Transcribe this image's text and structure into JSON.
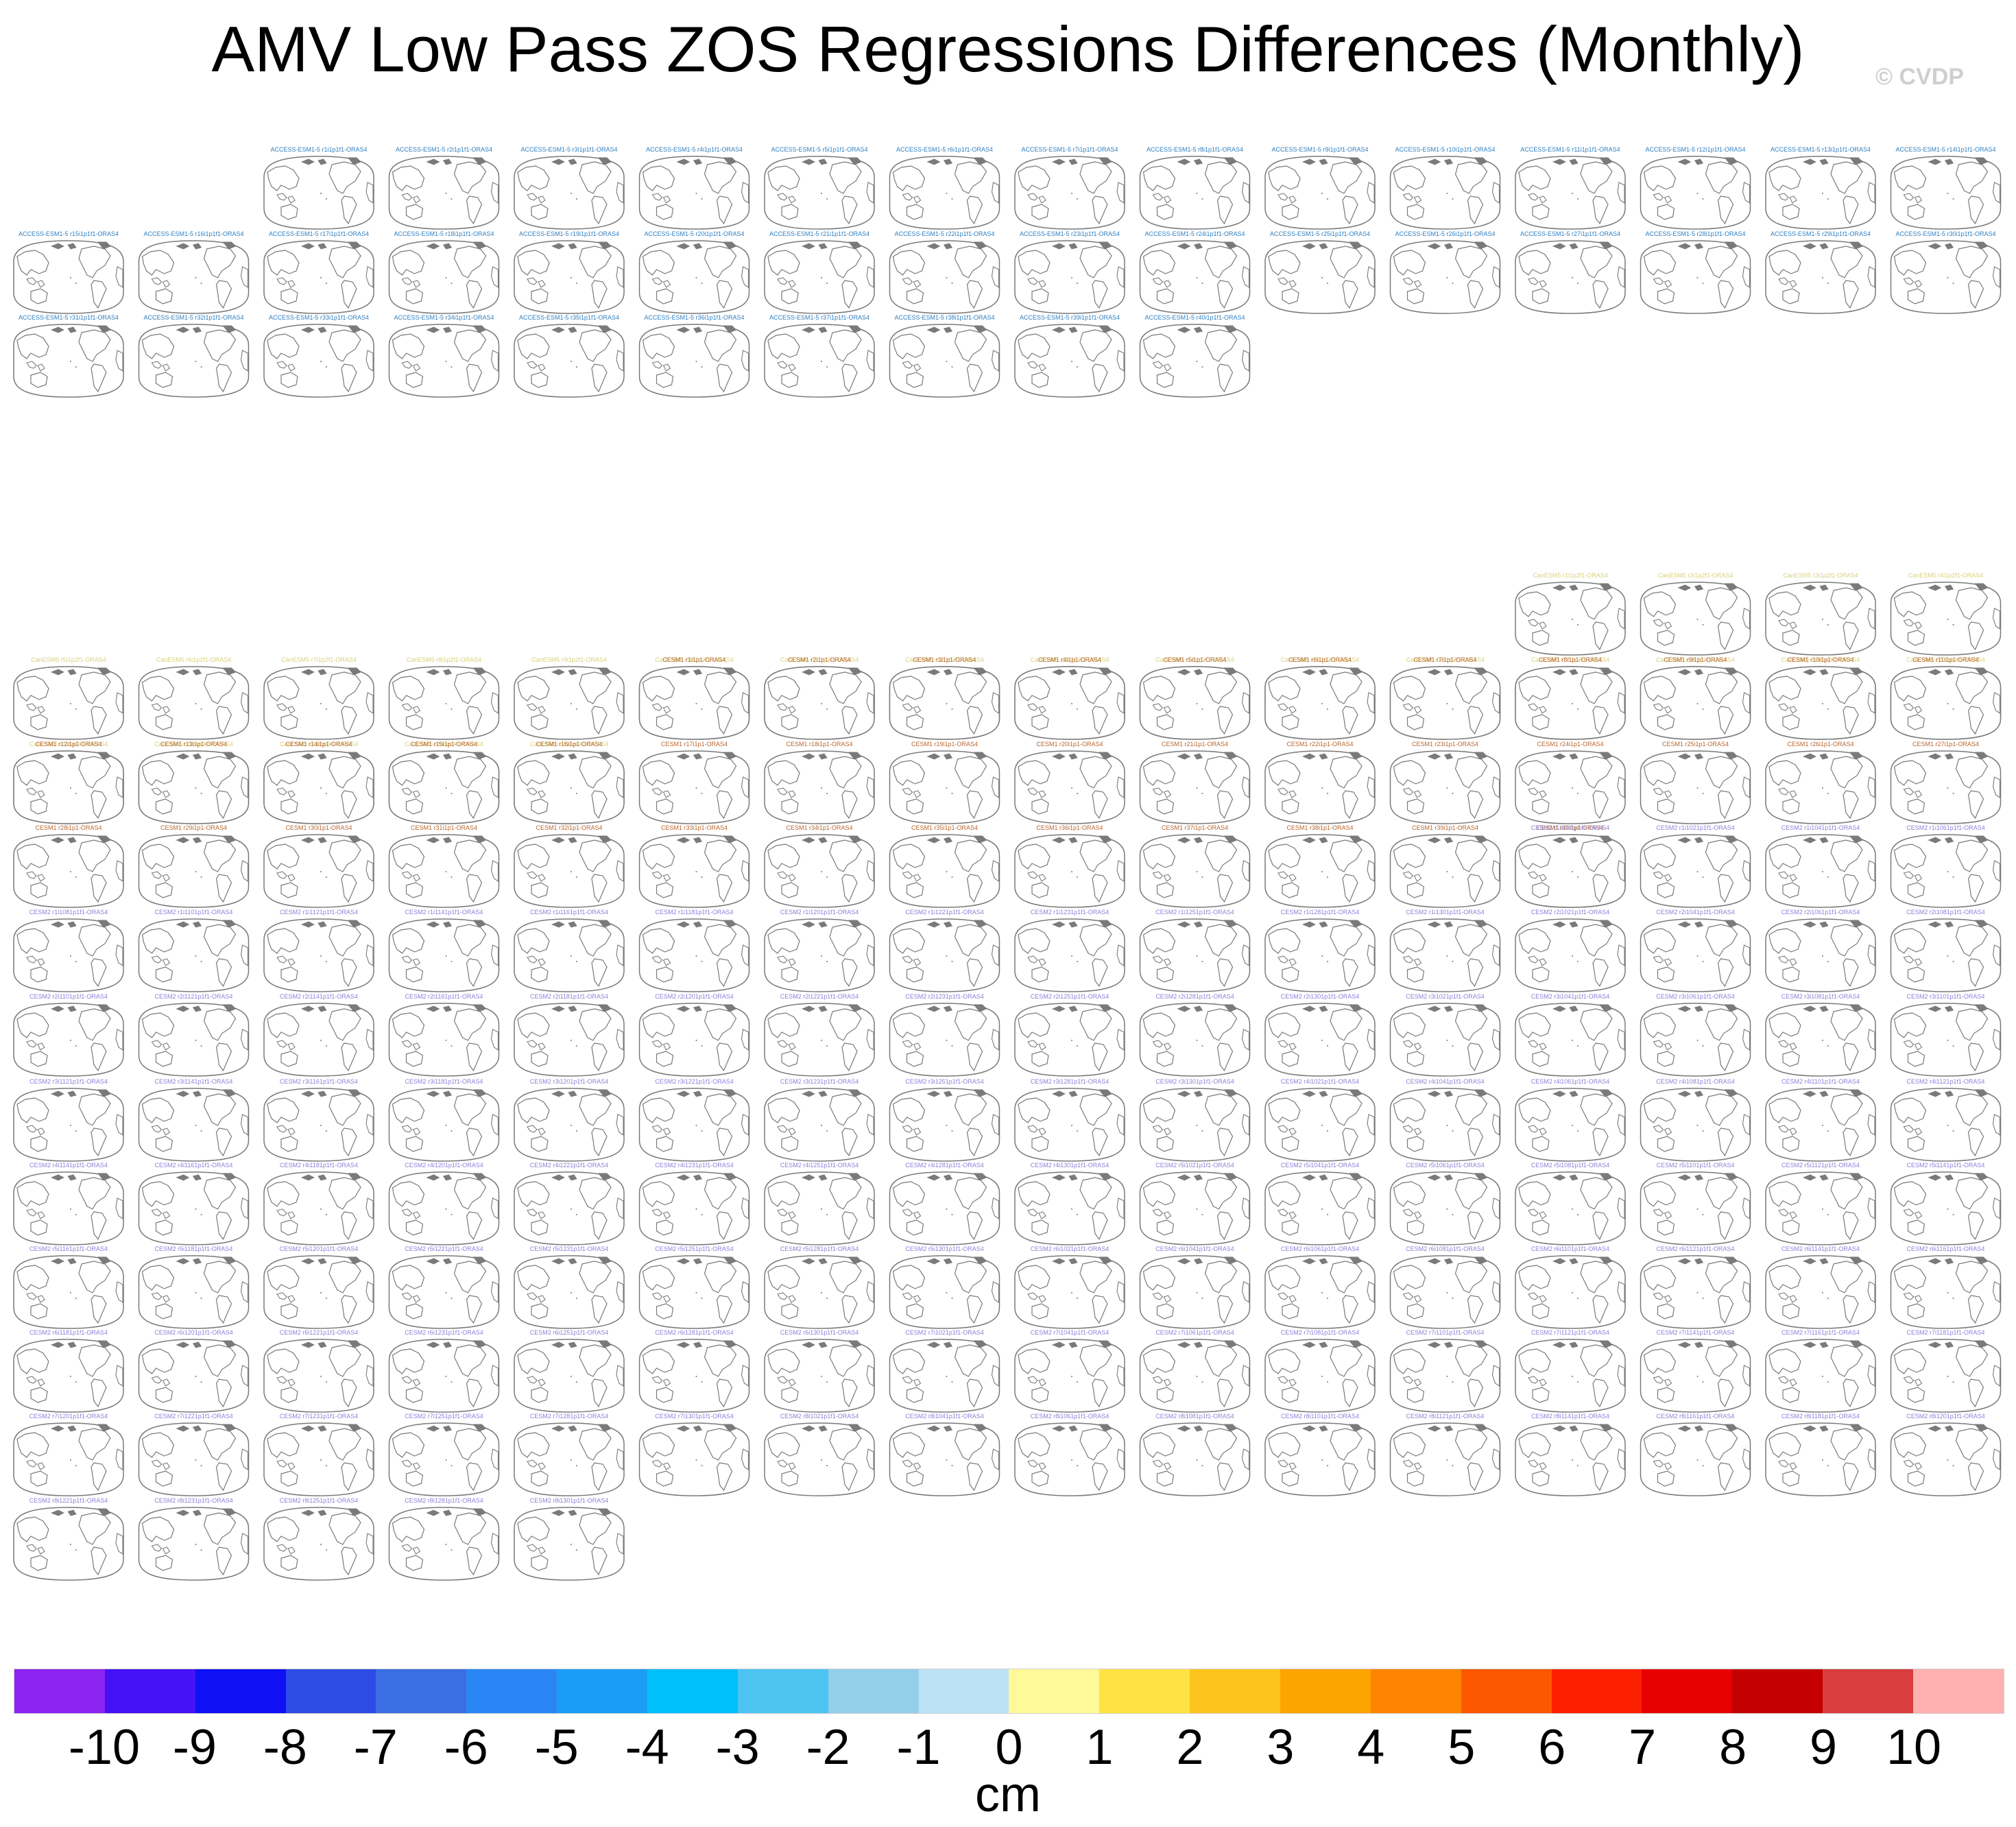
{
  "title": "AMV Low Pass ZOS Regressions Differences (Monthly)",
  "watermark": "© CVDP",
  "units": "cm",
  "colorbar": {
    "colors": [
      "#8B24F0",
      "#4512F5",
      "#1010F5",
      "#2E4BE5",
      "#3A6EE2",
      "#2B86F5",
      "#1A9EF5",
      "#00C0FA",
      "#4CC4F2",
      "#94CFEA",
      "#BCE2F5",
      "#FFF99A",
      "#FFE342",
      "#FDC41D",
      "#FCA400",
      "#FC8400",
      "#FC5800",
      "#FC2000",
      "#E80000",
      "#C40000",
      "#DA3D3D",
      "#FFB0B0"
    ],
    "labels": [
      "-10",
      "-9",
      "-8",
      "-7",
      "-6",
      "-5",
      "-4",
      "-3",
      "-2",
      "-1",
      "0",
      "1",
      "2",
      "3",
      "4",
      "5",
      "6",
      "7",
      "8",
      "9",
      "10"
    ]
  },
  "groups": [
    {
      "name": "ACCESS-ESM1-5",
      "color": "#2E7FC0",
      "labels": [
        "ACCESS-ESM1-5 r1i1p1f1-ORAS4",
        "ACCESS-ESM1-5 r2i1p1f1-ORAS4",
        "ACCESS-ESM1-5 r3i1p1f1-ORAS4",
        "ACCESS-ESM1-5 r4i1p1f1-ORAS4",
        "ACCESS-ESM1-5 r5i1p1f1-ORAS4",
        "ACCESS-ESM1-5 r6i1p1f1-ORAS4",
        "ACCESS-ESM1-5 r7i1p1f1-ORAS4",
        "ACCESS-ESM1-5 r8i1p1f1-ORAS4",
        "ACCESS-ESM1-5 r9i1p1f1-ORAS4",
        "ACCESS-ESM1-5 r10i1p1f1-ORAS4",
        "ACCESS-ESM1-5 r11i1p1f1-ORAS4",
        "ACCESS-ESM1-5 r12i1p1f1-ORAS4",
        "ACCESS-ESM1-5 r13i1p1f1-ORAS4",
        "ACCESS-ESM1-5 r14i1p1f1-ORAS4",
        "ACCESS-ESM1-5 r15i1p1f1-ORAS4",
        "ACCESS-ESM1-5 r16i1p1f1-ORAS4",
        "ACCESS-ESM1-5 r17i1p1f1-ORAS4",
        "ACCESS-ESM1-5 r18i1p1f1-ORAS4",
        "ACCESS-ESM1-5 r19i1p1f1-ORAS4",
        "ACCESS-ESM1-5 r20i1p1f1-ORAS4",
        "ACCESS-ESM1-5 r21i1p1f1-ORAS4",
        "ACCESS-ESM1-5 r22i1p1f1-ORAS4",
        "ACCESS-ESM1-5 r23i1p1f1-ORAS4",
        "ACCESS-ESM1-5 r24i1p1f1-ORAS4",
        "ACCESS-ESM1-5 r25i1p1f1-ORAS4",
        "ACCESS-ESM1-5 r26i1p1f1-ORAS4",
        "ACCESS-ESM1-5 r27i1p1f1-ORAS4",
        "ACCESS-ESM1-5 r28i1p1f1-ORAS4",
        "ACCESS-ESM1-5 r29i1p1f1-ORAS4",
        "ACCESS-ESM1-5 r30i1p1f1-ORAS4",
        "ACCESS-ESM1-5 r31i1p1f1-ORAS4",
        "ACCESS-ESM1-5 r32i1p1f1-ORAS4",
        "ACCESS-ESM1-5 r33i1p1f1-ORAS4",
        "ACCESS-ESM1-5 r34i1p1f1-ORAS4",
        "ACCESS-ESM1-5 r35i1p1f1-ORAS4",
        "ACCESS-ESM1-5 r36i1p1f1-ORAS4",
        "ACCESS-ESM1-5 r37i1p1f1-ORAS4",
        "ACCESS-ESM1-5 r38i1p1f1-ORAS4",
        "ACCESS-ESM1-5 r39i1p1f1-ORAS4",
        "ACCESS-ESM1-5 r40i1p1f1-ORAS4"
      ]
    },
    {
      "name": "CanESM5",
      "color": "#D8D27A",
      "labels": [
        "CanESM5 r1i1p2f1-ORAS4",
        "CanESM5 r2i1p2f1-ORAS4",
        "CanESM5 r3i1p2f1-ORAS4",
        "CanESM5 r4i1p2f1-ORAS4",
        "CanESM5 r5i1p2f1-ORAS4",
        "CanESM5 r6i1p2f1-ORAS4",
        "CanESM5 r7i1p2f1-ORAS4",
        "CanESM5 r8i1p2f1-ORAS4",
        "CanESM5 r9i1p2f1-ORAS4",
        "CanESM5 r10i1p2f1-ORAS4",
        "CanESM5 r11i1p2f1-ORAS4",
        "CanESM5 r12i1p2f1-ORAS4",
        "CanESM5 r13i1p2f1-ORAS4",
        "CanESM5 r14i1p2f1-ORAS4",
        "CanESM5 r15i1p2f1-ORAS4",
        "CanESM5 r16i1p2f1-ORAS4",
        "CanESM5 r17i1p2f1-ORAS4",
        "CanESM5 r18i1p2f1-ORAS4",
        "CanESM5 r19i1p2f1-ORAS4",
        "CanESM5 r20i1p2f1-ORAS4",
        "CanESM5 r21i1p2f1-ORAS4",
        "CanESM5 r22i1p2f1-ORAS4",
        "CanESM5 r23i1p2f1-ORAS4",
        "CanESM5 r24i1p2f1-ORAS4",
        "CanESM5 r25i1p2f1-ORAS4"
      ]
    },
    {
      "name": "CESM1",
      "color": "#B8662E",
      "labels": [
        "CESM1 r1i1p1-ORAS4",
        "CESM1 r2i1p1-ORAS4",
        "CESM1 r3i1p1-ORAS4",
        "CESM1 r4i1p1-ORAS4",
        "CESM1 r5i1p1-ORAS4",
        "CESM1 r6i1p1-ORAS4",
        "CESM1 r7i1p1-ORAS4",
        "CESM1 r8i1p1-ORAS4",
        "CESM1 r9i1p1-ORAS4",
        "CESM1 r10i1p1-ORAS4",
        "CESM1 r11i1p1-ORAS4",
        "CESM1 r12i1p1-ORAS4",
        "CESM1 r13i1p1-ORAS4",
        "CESM1 r14i1p1-ORAS4",
        "CESM1 r15i1p1-ORAS4",
        "CESM1 r16i1p1-ORAS4",
        "CESM1 r17i1p1-ORAS4",
        "CESM1 r18i1p1-ORAS4",
        "CESM1 r19i1p1-ORAS4",
        "CESM1 r20i1p1-ORAS4",
        "CESM1 r21i1p1-ORAS4",
        "CESM1 r22i1p1-ORAS4",
        "CESM1 r23i1p1-ORAS4",
        "CESM1 r24i1p1-ORAS4",
        "CESM1 r25i1p1-ORAS4",
        "CESM1 r26i1p1-ORAS4",
        "CESM1 r27i1p1-ORAS4",
        "CESM1 r28i1p1-ORAS4",
        "CESM1 r29i1p1-ORAS4",
        "CESM1 r30i1p1-ORAS4",
        "CESM1 r31i1p1-ORAS4",
        "CESM1 r32i1p1-ORAS4",
        "CESM1 r33i1p1-ORAS4",
        "CESM1 r34i1p1-ORAS4",
        "CESM1 r35i1p1-ORAS4",
        "CESM1 r36i1p1-ORAS4",
        "CESM1 r37i1p1-ORAS4",
        "CESM1 r38i1p1-ORAS4",
        "CESM1 r39i1p1-ORAS4",
        "CESM1 r40i1p1-ORAS4"
      ]
    },
    {
      "name": "CESM2",
      "color": "#8C80D8",
      "labels": [
        "CESM2 r1i1001p1f1-ORAS4",
        "CESM2 r1i1021p1f1-ORAS4",
        "CESM2 r1i1041p1f1-ORAS4",
        "CESM2 r1i1061p1f1-ORAS4",
        "CESM2 r1i1081p1f1-ORAS4",
        "CESM2 r1i1101p1f1-ORAS4",
        "CESM2 r1i1121p1f1-ORAS4",
        "CESM2 r1i1141p1f1-ORAS4",
        "CESM2 r1i1161p1f1-ORAS4",
        "CESM2 r1i1181p1f1-ORAS4",
        "CESM2 r1i1201p1f1-ORAS4",
        "CESM2 r1i1221p1f1-ORAS4",
        "CESM2 r1i1231p1f1-ORAS4",
        "CESM2 r1i1251p1f1-ORAS4",
        "CESM2 r1i1281p1f1-ORAS4",
        "CESM2 r1i1301p1f1-ORAS4",
        "CESM2 r2i1021p1f1-ORAS4",
        "CESM2 r2i1041p1f1-ORAS4",
        "CESM2 r2i1061p1f1-ORAS4",
        "CESM2 r2i1081p1f1-ORAS4",
        "CESM2 r2i1101p1f1-ORAS4",
        "CESM2 r2i1121p1f1-ORAS4",
        "CESM2 r2i1141p1f1-ORAS4",
        "CESM2 r2i1161p1f1-ORAS4",
        "CESM2 r2i1181p1f1-ORAS4",
        "CESM2 r2i1201p1f1-ORAS4",
        "CESM2 r2i1221p1f1-ORAS4",
        "CESM2 r2i1231p1f1-ORAS4",
        "CESM2 r2i1251p1f1-ORAS4",
        "CESM2 r2i1281p1f1-ORAS4",
        "CESM2 r2i1301p1f1-ORAS4",
        "CESM2 r3i1021p1f1-ORAS4",
        "CESM2 r3i1041p1f1-ORAS4",
        "CESM2 r3i1061p1f1-ORAS4",
        "CESM2 r3i1081p1f1-ORAS4",
        "CESM2 r3i1101p1f1-ORAS4",
        "CESM2 r3i1121p1f1-ORAS4",
        "CESM2 r3i1141p1f1-ORAS4",
        "CESM2 r3i1161p1f1-ORAS4",
        "CESM2 r3i1181p1f1-ORAS4",
        "CESM2 r3i1201p1f1-ORAS4",
        "CESM2 r3i1221p1f1-ORAS4",
        "CESM2 r3i1231p1f1-ORAS4",
        "CESM2 r3i1251p1f1-ORAS4",
        "CESM2 r3i1281p1f1-ORAS4",
        "CESM2 r3i1301p1f1-ORAS4",
        "CESM2 r4i1021p1f1-ORAS4",
        "CESM2 r4i1041p1f1-ORAS4",
        "CESM2 r4i1061p1f1-ORAS4",
        "CESM2 r4i1081p1f1-ORAS4",
        "CESM2 r4i1101p1f1-ORAS4",
        "CESM2 r4i1121p1f1-ORAS4",
        "CESM2 r4i1141p1f1-ORAS4",
        "CESM2 r4i1161p1f1-ORAS4",
        "CESM2 r4i1181p1f1-ORAS4",
        "CESM2 r4i1201p1f1-ORAS4",
        "CESM2 r4i1221p1f1-ORAS4",
        "CESM2 r4i1231p1f1-ORAS4",
        "CESM2 r4i1251p1f1-ORAS4",
        "CESM2 r4i1281p1f1-ORAS4",
        "CESM2 r4i1301p1f1-ORAS4",
        "CESM2 r5i1021p1f1-ORAS4",
        "CESM2 r5i1041p1f1-ORAS4",
        "CESM2 r5i1061p1f1-ORAS4",
        "CESM2 r5i1081p1f1-ORAS4",
        "CESM2 r5i1101p1f1-ORAS4",
        "CESM2 r5i1121p1f1-ORAS4",
        "CESM2 r5i1141p1f1-ORAS4",
        "CESM2 r5i1161p1f1-ORAS4",
        "CESM2 r5i1181p1f1-ORAS4",
        "CESM2 r5i1201p1f1-ORAS4",
        "CESM2 r5i1221p1f1-ORAS4",
        "CESM2 r5i1231p1f1-ORAS4",
        "CESM2 r5i1251p1f1-ORAS4",
        "CESM2 r5i1281p1f1-ORAS4",
        "CESM2 r5i1301p1f1-ORAS4",
        "CESM2 r6i1021p1f1-ORAS4",
        "CESM2 r6i1041p1f1-ORAS4",
        "CESM2 r6i1061p1f1-ORAS4",
        "CESM2 r6i1081p1f1-ORAS4",
        "CESM2 r6i1101p1f1-ORAS4",
        "CESM2 r6i1121p1f1-ORAS4",
        "CESM2 r6i1141p1f1-ORAS4",
        "CESM2 r6i1161p1f1-ORAS4",
        "CESM2 r6i1181p1f1-ORAS4",
        "CESM2 r6i1201p1f1-ORAS4",
        "CESM2 r6i1221p1f1-ORAS4",
        "CESM2 r6i1231p1f1-ORAS4",
        "CESM2 r6i1251p1f1-ORAS4",
        "CESM2 r6i1281p1f1-ORAS4",
        "CESM2 r6i1301p1f1-ORAS4",
        "CESM2 r7i1021p1f1-ORAS4",
        "CESM2 r7i1041p1f1-ORAS4",
        "CESM2 r7i1061p1f1-ORAS4",
        "CESM2 r7i1081p1f1-ORAS4",
        "CESM2 r7i1101p1f1-ORAS4",
        "CESM2 r7i1121p1f1-ORAS4",
        "CESM2 r7i1141p1f1-ORAS4",
        "CESM2 r7i1161p1f1-ORAS4",
        "CESM2 r7i1181p1f1-ORAS4",
        "CESM2 r7i1201p1f1-ORAS4",
        "CESM2 r7i1221p1f1-ORAS4",
        "CESM2 r7i1231p1f1-ORAS4",
        "CESM2 r7i1251p1f1-ORAS4",
        "CESM2 r7i1281p1f1-ORAS4",
        "CESM2 r7i1301p1f1-ORAS4",
        "CESM2 r8i1021p1f1-ORAS4",
        "CESM2 r8i1041p1f1-ORAS4",
        "CESM2 r8i1061p1f1-ORAS4",
        "CESM2 r8i1081p1f1-ORAS4",
        "CESM2 r8i1101p1f1-ORAS4",
        "CESM2 r8i1121p1f1-ORAS4",
        "CESM2 r8i1141p1f1-ORAS4",
        "CESM2 r8i1161p1f1-ORAS4",
        "CESM2 r8i1181p1f1-ORAS4",
        "CESM2 r8i1201p1f1-ORAS4",
        "CESM2 r8i1221p1f1-ORAS4",
        "CESM2 r8i1231p1f1-ORAS4",
        "CESM2 r8i1251p1f1-ORAS4",
        "CESM2 r8i1281p1f1-ORAS4",
        "CESM2 r8i1301p1f1-ORAS4"
      ]
    }
  ]
}
